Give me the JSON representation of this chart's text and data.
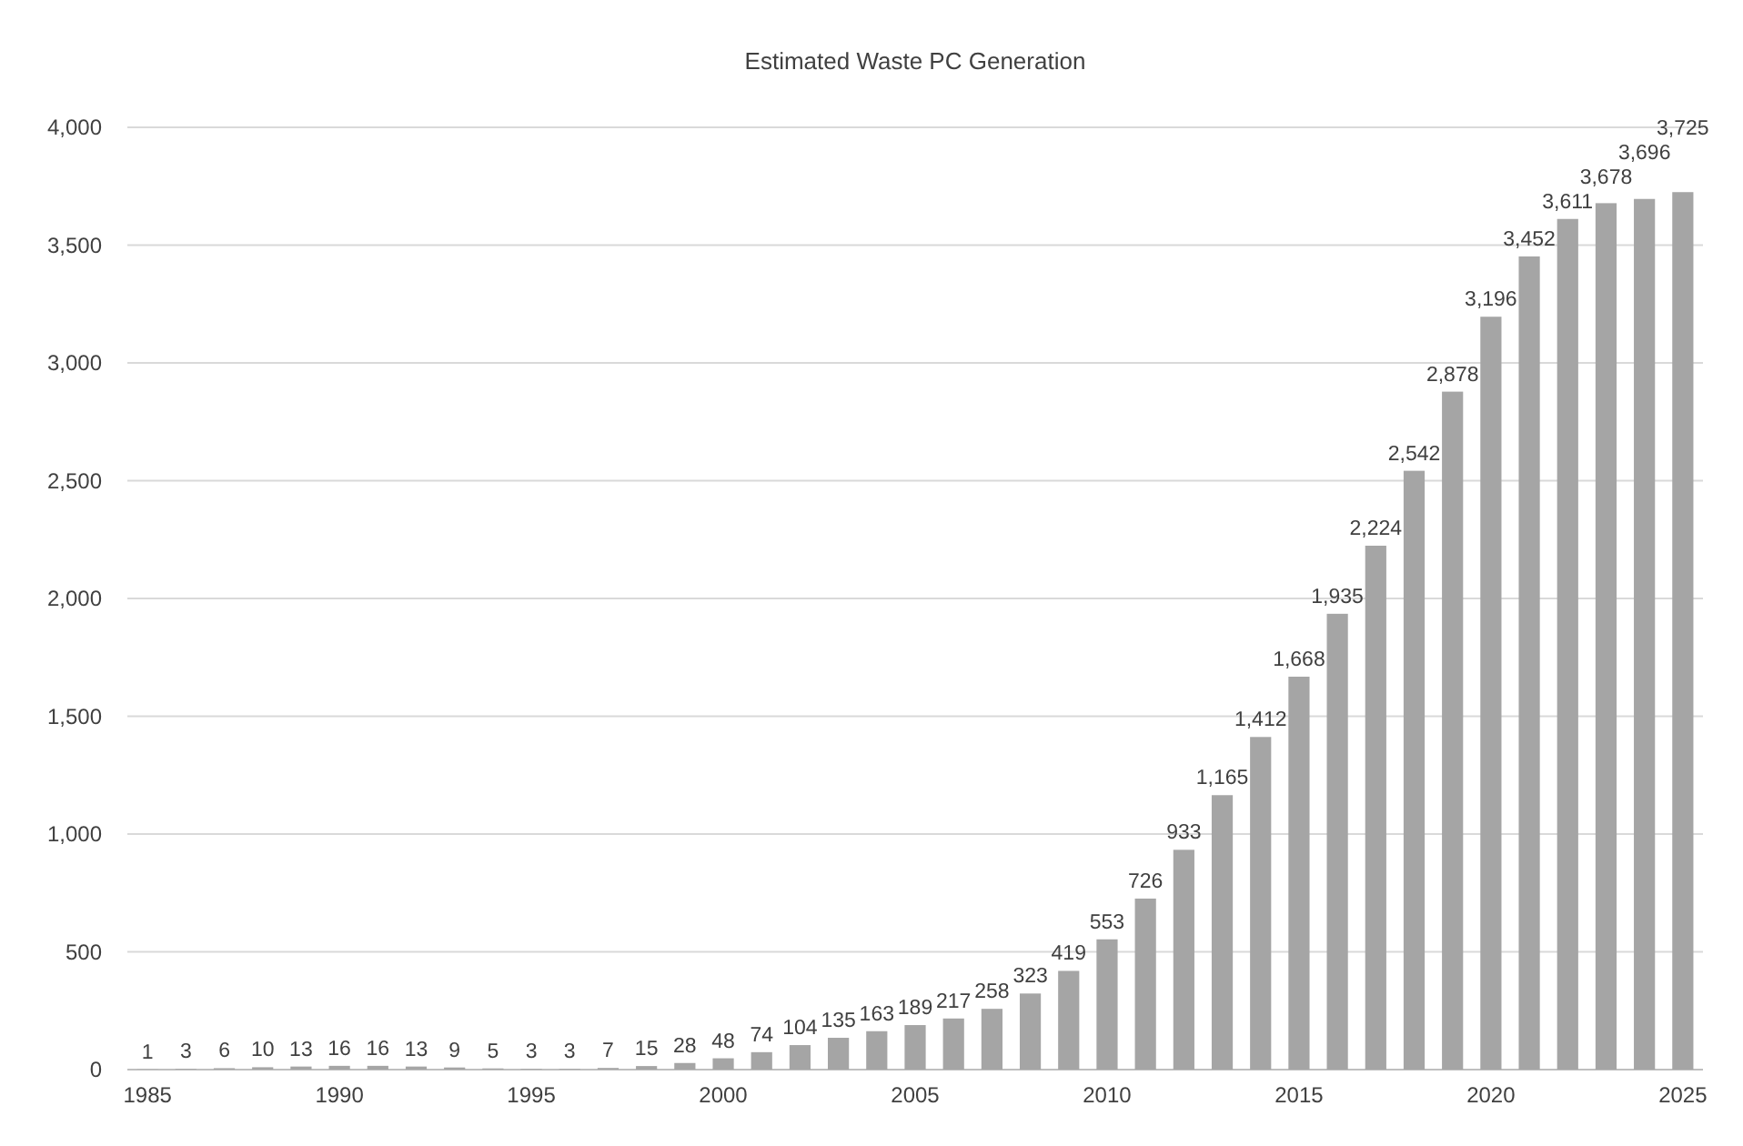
{
  "chart_data": {
    "type": "bar",
    "title": "Estimated Waste PC Generation",
    "categories": [
      "1985",
      null,
      null,
      null,
      null,
      "1990",
      null,
      null,
      null,
      null,
      "1995",
      null,
      null,
      null,
      null,
      "2000",
      null,
      null,
      null,
      null,
      "2005",
      null,
      null,
      null,
      null,
      "2010",
      null,
      null,
      null,
      null,
      "2015",
      null,
      null,
      null,
      null,
      "2020",
      null,
      null,
      null,
      null,
      "2025"
    ],
    "values": [
      1,
      3,
      6,
      10,
      13,
      16,
      16,
      13,
      9,
      5,
      3,
      3,
      7,
      15,
      28,
      48,
      74,
      104,
      135,
      163,
      189,
      217,
      258,
      323,
      419,
      553,
      726,
      933,
      1165,
      1412,
      1668,
      1935,
      2224,
      2542,
      2878,
      3196,
      3452,
      3611,
      3678,
      3696,
      3725
    ],
    "value_labels": [
      "1",
      "3",
      "6",
      "10",
      "13",
      "16",
      "16",
      "13",
      "9",
      "5",
      "3",
      "3",
      "7",
      "15",
      "28",
      "48",
      "74",
      "104",
      "135",
      "163",
      "189",
      "217",
      "258",
      "323",
      "419",
      "553",
      "726",
      "933",
      "1,165",
      "1,412",
      "1,668",
      "1,935",
      "2,224",
      "2,542",
      "2,878",
      "3,196",
      "3,452",
      "3,611",
      "3,678",
      "3,696",
      "3,725"
    ],
    "color": "#a5a5a5",
    "ylim": [
      0,
      4000
    ],
    "yticks": [
      0,
      500,
      {
        "value": 1000,
        "label": "1,000"
      },
      {
        "value": 1500,
        "label": "1,500"
      },
      {
        "value": 2000,
        "label": "2,000"
      },
      {
        "value": 2500,
        "label": "2,500"
      },
      {
        "value": 3000,
        "label": "3,000"
      },
      {
        "value": 3500,
        "label": "3,500"
      },
      {
        "value": 4000,
        "label": "4,000"
      }
    ],
    "grid": "y"
  }
}
